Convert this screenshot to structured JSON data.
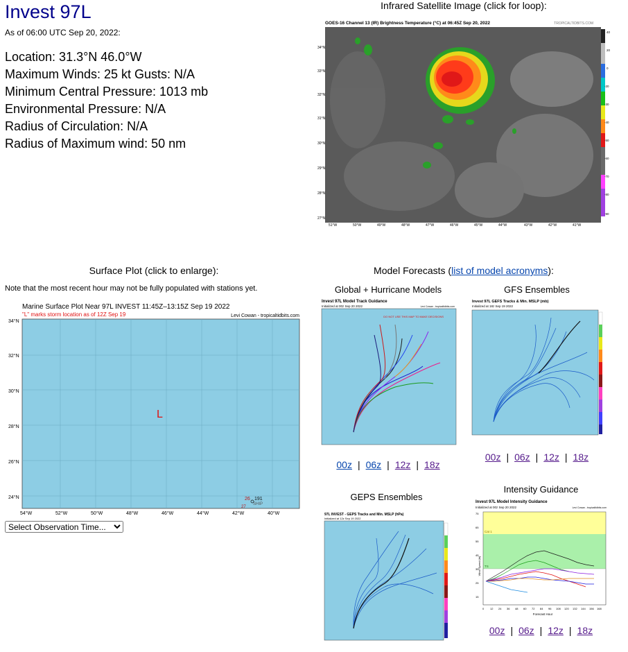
{
  "header": {
    "title": "Invest 97L",
    "as_of": "As of 06:00 UTC Sep 20, 2022:"
  },
  "stats": [
    "Location: 31.3°N 46.0°W",
    "Maximum Winds: 25 kt  Gusts: N/A",
    "Minimum Central Pressure: 1013 mb",
    "Environmental Pressure: N/A",
    "Radius of Circulation: N/A",
    "Radius of Maximum wind: 50 nm"
  ],
  "satellite": {
    "caption": "Infrared Satellite Image (click for loop):",
    "image_title": "GOES-16 Channel 13 (IR) Brightness Temperature (°C) at 06:45Z Sep 20, 2022",
    "credit": "TROPICALTIDBITS.COM",
    "lat_labels": [
      "34°N",
      "33°N",
      "32°N",
      "31°N",
      "30°N",
      "29°N",
      "28°N",
      "27°N"
    ],
    "lon_labels": [
      "51°W",
      "50°W",
      "49°W",
      "48°W",
      "47°W",
      "46°W",
      "45°W",
      "44°W",
      "43°W",
      "42°W",
      "41°W"
    ],
    "scale_labels": [
      "40",
      "20",
      "0",
      "-10",
      "-20",
      "-30",
      "-40",
      "-50",
      "-60",
      "-70",
      "-80",
      "-90"
    ]
  },
  "surface": {
    "caption": "Surface Plot (click to enlarge):",
    "note": "Note that the most recent hour may not be fully populated with stations yet.",
    "plot_title": "Marine Surface Plot Near 97L INVEST 11:45Z–13:15Z Sep 19 2022",
    "plot_subtitle": "\"L\" marks storm location as of 12Z Sep 19",
    "credit": "Levi Cowan - tropicaltidbits.com",
    "lat_labels": [
      "34°N",
      "32°N",
      "30°N",
      "28°N",
      "26°N",
      "24°N"
    ],
    "lon_labels": [
      "54°W",
      "52°W",
      "50°W",
      "48°W",
      "46°W",
      "44°W",
      "42°W",
      "40°W"
    ],
    "storm_marker": "L",
    "station_a": "26",
    "station_b": "191",
    "station_c": "27",
    "station_d": "SHIP",
    "select_label": "Select Observation Time..."
  },
  "models": {
    "caption_prefix": "Model Forecasts (",
    "caption_link": "list of model acronyms",
    "caption_suffix": "):",
    "global_caption": "Global + Hurricane Models",
    "global_title": "Invest 97L Model Track Guidance",
    "global_init": "Initialized at 00z Sep 20 2022",
    "gfs_caption": "GFS Ensembles",
    "gfs_title": "Invest 97L GEFS Tracks & Min. MSLP (mb)",
    "gfs_init": "Initialized at 18z Sep 19 2022",
    "gfs_scale": [
      "1010",
      "1005",
      "1000",
      "990",
      "980",
      "970",
      "960",
      "950",
      "940",
      "930"
    ],
    "geps_caption": "GEPS Ensembles",
    "geps_title": "97L INVEST - GEPS Tracks and Min. MSLP (hPa)",
    "geps_init": "Initialized at 12z Sep 19 2022",
    "intensity_caption": "Intensity Guidance",
    "intensity_title": "Invest 97L Model Intensity Guidance",
    "intensity_init": "Initialized at 00z Sep 20 2022",
    "intensity_ylabel": "Wind Speed (kt)",
    "intensity_xlabel": "Forecast Hour",
    "intensity_cat": "Cat 1",
    "intensity_ts": "TS",
    "intensity_x_ticks": [
      "0",
      "12",
      "24",
      "36",
      "48",
      "60",
      "72",
      "84",
      "96",
      "108",
      "120",
      "132",
      "144",
      "156",
      "168"
    ],
    "intensity_y_ticks": [
      "75",
      "70",
      "65",
      "60",
      "55",
      "50",
      "45",
      "40",
      "35",
      "30",
      "25",
      "20",
      "15"
    ],
    "credit": "Levi Cowan - tropicaltidbits.com",
    "warning": "DO NOT USE THIS MAP TO MAKE DECISIONS"
  },
  "runs": {
    "global": [
      "00z",
      "06z",
      "12z",
      "18z"
    ],
    "gfs": [
      "00z",
      "06z",
      "12z",
      "18z"
    ],
    "geps": [],
    "intensity": [
      "00z",
      "06z",
      "12z",
      "18z"
    ]
  },
  "colors": {
    "title": "#00008b",
    "link": "#0645ad",
    "visited": "#551a8b",
    "ocean": "#8dcde4"
  }
}
